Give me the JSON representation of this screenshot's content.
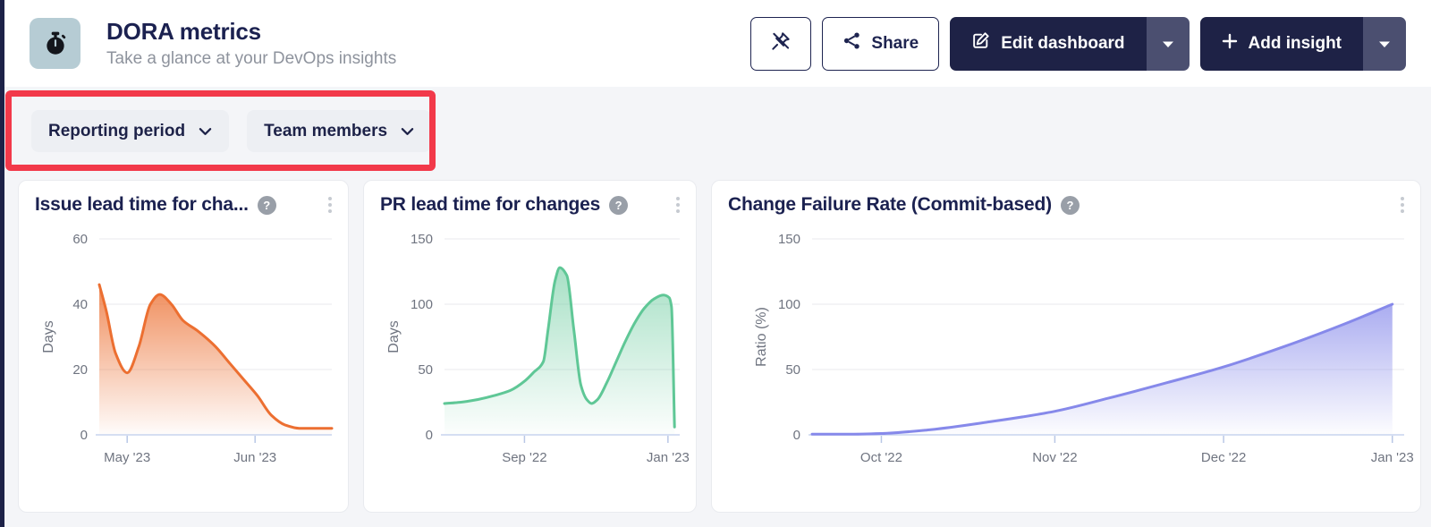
{
  "header": {
    "title": "DORA metrics",
    "subtitle": "Take a glance at your DevOps insights",
    "toolbar": {
      "share_label": "Share",
      "edit_dashboard_label": "Edit dashboard",
      "add_insight_label": "Add insight"
    }
  },
  "filters": {
    "reporting_period_label": "Reporting period",
    "team_members_label": "Team members"
  },
  "icons": {
    "help_glyph": "?",
    "app_icon": "stopwatch",
    "pin_icon": "pin-crossed-out"
  },
  "colors": {
    "navy": "#1e2246",
    "navy_caret_segment": "#4b4f70",
    "annotation_red": "#f2394a",
    "icon_tile_blue": "#b6ccd4",
    "orange_series": "#ec6f31",
    "green_series": "#5fc796",
    "purple_series": "#8689ea",
    "axis_line": "#c7d4ee",
    "gridline": "#e9eaee"
  },
  "chart_data": [
    {
      "type": "area",
      "title": "Issue lead time for cha...",
      "ylabel": "Days",
      "ylim": [
        0,
        60
      ],
      "yticks": [
        0,
        20,
        40,
        60
      ],
      "grid": true,
      "legend": false,
      "color": "#ec6f31",
      "fill_opacity": 0.8,
      "xticks": [
        {
          "label": "May '23",
          "pos": 0.12
        },
        {
          "label": "Jun '23",
          "pos": 0.67
        }
      ],
      "x": [
        0,
        0.03,
        0.07,
        0.12,
        0.17,
        0.22,
        0.26,
        0.31,
        0.36,
        0.42,
        0.5,
        0.56,
        0.62,
        0.68,
        0.74,
        0.8,
        0.86,
        0.93,
        1
      ],
      "y": [
        46,
        38,
        25,
        19,
        27,
        40,
        43,
        40,
        35,
        32,
        27,
        22,
        17,
        12,
        6,
        3,
        2,
        2,
        2
      ]
    },
    {
      "type": "area",
      "title": "PR lead time for changes",
      "ylabel": "Days",
      "ylim": [
        0,
        150
      ],
      "yticks": [
        0,
        50,
        100,
        150
      ],
      "grid": true,
      "legend": false,
      "color": "#5fc796",
      "fill_opacity": 0.55,
      "xticks": [
        {
          "label": "Sep '22",
          "pos": 0.34
        },
        {
          "label": "Jan '23",
          "pos": 0.95
        }
      ],
      "x": [
        0,
        0.07,
        0.14,
        0.21,
        0.28,
        0.34,
        0.38,
        0.42,
        0.44,
        0.47,
        0.49,
        0.52,
        0.55,
        0.58,
        0.605,
        0.625,
        0.65,
        0.69,
        0.73,
        0.77,
        0.81,
        0.85,
        0.89,
        0.93,
        0.955,
        0.965,
        0.978
      ],
      "y": [
        24,
        25,
        27,
        30,
        34,
        41,
        48,
        56,
        80,
        118,
        128,
        122,
        80,
        38,
        27,
        24,
        27,
        40,
        56,
        72,
        86,
        97,
        104,
        107,
        105,
        98,
        6
      ]
    },
    {
      "type": "area",
      "title": "Change Failure Rate (Commit-based)",
      "ylabel": "Ratio (%)",
      "ylim": [
        0,
        150
      ],
      "yticks": [
        0,
        50,
        100,
        150
      ],
      "grid": true,
      "legend": false,
      "color": "#8689ea",
      "fill_opacity": 0.7,
      "xticks": [
        {
          "label": "Oct '22",
          "pos": 0.117
        },
        {
          "label": "Nov '22",
          "pos": 0.41
        },
        {
          "label": "Dec '22",
          "pos": 0.695
        },
        {
          "label": "Jan '23",
          "pos": 0.98
        }
      ],
      "x": [
        0,
        0.06,
        0.117,
        0.2,
        0.3,
        0.41,
        0.5,
        0.6,
        0.695,
        0.8,
        0.9,
        0.98
      ],
      "y": [
        0.5,
        0.5,
        1,
        4,
        10,
        18,
        28,
        40,
        52,
        68,
        85,
        100
      ]
    }
  ]
}
